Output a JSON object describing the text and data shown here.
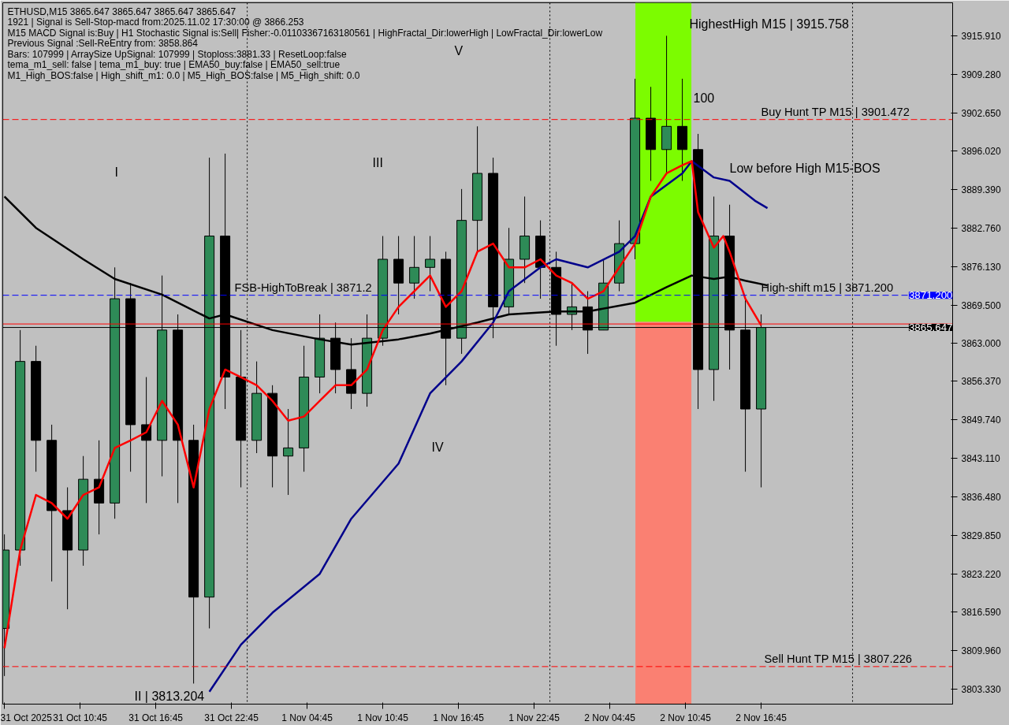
{
  "chart_data": {
    "type": "candlestick",
    "xlim": [
      "2025-10-31T04:37",
      "2025-11-03T07:56"
    ],
    "ylim": [
      3800.76,
      3921.59
    ],
    "xticks": [
      {
        "value": "2025-10-31T04:45",
        "label": "31 Oct 2025"
      },
      {
        "value": "2025-10-31T10:45",
        "label": "31 Oct 10:45"
      },
      {
        "value": "2025-10-31T16:45",
        "label": "31 Oct 16:45"
      },
      {
        "value": "2025-10-31T22:45",
        "label": "31 Oct 22:45"
      },
      {
        "value": "2025-11-01T04:45",
        "label": "1 Nov 04:45"
      },
      {
        "value": "2025-11-01T10:45",
        "label": "1 Nov 10:45"
      },
      {
        "value": "2025-11-01T16:45",
        "label": "1 Nov 16:45"
      },
      {
        "value": "2025-11-01T22:45",
        "label": "1 Nov 22:45"
      },
      {
        "value": "2025-11-02T04:45",
        "label": "2 Nov 04:45"
      },
      {
        "value": "2025-11-02T10:45",
        "label": "2 Nov 10:45"
      },
      {
        "value": "2025-11-02T16:45",
        "label": "2 Nov 16:45"
      }
    ],
    "yticks": [
      {
        "value": 3915.91,
        "label": "3915.910"
      },
      {
        "value": 3909.28,
        "label": "3909.280"
      },
      {
        "value": 3902.65,
        "label": "3902.650"
      },
      {
        "value": 3896.02,
        "label": "3896.020"
      },
      {
        "value": 3889.39,
        "label": "3889.390"
      },
      {
        "value": 3882.76,
        "label": "3882.760"
      },
      {
        "value": 3876.13,
        "label": "3876.130"
      },
      {
        "value": 3869.5,
        "label": "3869.500"
      },
      {
        "value": 3863.0,
        "label": "3863.000"
      },
      {
        "value": 3856.37,
        "label": "3856.370"
      },
      {
        "value": 3849.74,
        "label": "3849.740"
      },
      {
        "value": 3843.11,
        "label": "3843.110"
      },
      {
        "value": 3836.48,
        "label": "3836.480"
      },
      {
        "value": 3829.85,
        "label": "3829.850"
      },
      {
        "value": 3823.22,
        "label": "3823.220"
      },
      {
        "value": 3816.59,
        "label": "3816.590"
      },
      {
        "value": 3809.96,
        "label": "3809.960"
      },
      {
        "value": 3803.33,
        "label": "3803.330"
      }
    ],
    "series": [
      {
        "type": "bar",
        "color": "#7cfc00",
        "x": [
          "2025-11-02T09:00"
        ],
        "base": [
          3866.6
        ],
        "values": [
          55.0
        ]
      },
      {
        "type": "bar",
        "color": "#fa8072",
        "x": [
          "2025-11-02T09:00"
        ],
        "base": [
          3800.8
        ],
        "values": [
          65.8
        ]
      },
      {
        "type": "line",
        "color": "#000000",
        "x": [
          "2025-10-31T04:45",
          "2025-10-31T07:15",
          "2025-10-31T11:00",
          "2025-10-31T13:30",
          "2025-10-31T17:15",
          "2025-10-31T21:00",
          "2025-10-31T22:15",
          "2025-11-01T02:00",
          "2025-11-01T05:45",
          "2025-11-01T08:15",
          "2025-11-01T12:00",
          "2025-11-01T14:30",
          "2025-11-01T18:15",
          "2025-11-01T20:45",
          "2025-11-02T00:30",
          "2025-11-02T03:00",
          "2025-11-02T06:45",
          "2025-11-02T09:15",
          "2025-11-02T11:15",
          "2025-11-02T13:00",
          "2025-11-02T14:15",
          "2025-11-02T15:30",
          "2025-11-02T17:15"
        ],
        "values": [
          3888.2,
          3882.8,
          3877.4,
          3874.0,
          3871.3,
          3867.2,
          3867.9,
          3865.2,
          3863.6,
          3862.7,
          3863.6,
          3864.6,
          3866.5,
          3867.9,
          3868.4,
          3868.4,
          3869.9,
          3872.6,
          3874.6,
          3874.0,
          3874.4,
          3873.7,
          3872.9
        ]
      },
      {
        "type": "line",
        "color": "#00008b",
        "x": [
          "2025-10-31T21:00",
          "2025-10-31T23:30",
          "2025-11-01T02:00",
          "2025-11-01T05:45",
          "2025-11-01T08:15",
          "2025-11-01T12:00",
          "2025-11-01T14:30",
          "2025-11-01T17:00",
          "2025-11-01T19:30",
          "2025-11-01T20:45",
          "2025-11-01T23:15",
          "2025-11-02T00:30",
          "2025-11-02T03:00",
          "2025-11-02T05:30",
          "2025-11-02T06:45",
          "2025-11-02T08:00",
          "2025-11-02T10:30",
          "2025-11-02T11:15",
          "2025-11-02T13:00",
          "2025-11-02T14:15",
          "2025-11-02T16:15",
          "2025-11-02T17:15"
        ],
        "values": [
          3802.9,
          3811.0,
          3816.5,
          3823.2,
          3832.7,
          3842.2,
          3854.3,
          3859.8,
          3866.5,
          3871.9,
          3876.0,
          3877.4,
          3876.0,
          3878.7,
          3881.4,
          3888.2,
          3892.2,
          3894.3,
          3891.5,
          3890.9,
          3887.5,
          3886.2
        ]
      },
      {
        "type": "line",
        "color": "#ff0000",
        "x": [
          "2025-10-31T04:45",
          "2025-10-31T06:00",
          "2025-10-31T07:15",
          "2025-10-31T08:30",
          "2025-10-31T09:45",
          "2025-10-31T11:00",
          "2025-10-31T12:15",
          "2025-10-31T13:30",
          "2025-10-31T14:45",
          "2025-10-31T16:00",
          "2025-10-31T17:15",
          "2025-10-31T18:30",
          "2025-10-31T19:45",
          "2025-10-31T21:00",
          "2025-10-31T22:15",
          "2025-10-31T23:30",
          "2025-11-01T00:45",
          "2025-11-01T02:00",
          "2025-11-01T03:15",
          "2025-11-01T04:30",
          "2025-11-01T05:45",
          "2025-11-01T07:00",
          "2025-11-01T08:15",
          "2025-11-01T09:30",
          "2025-11-01T10:45",
          "2025-11-01T12:00",
          "2025-11-01T13:15",
          "2025-11-01T14:30",
          "2025-11-01T15:45",
          "2025-11-01T17:00",
          "2025-11-01T18:15",
          "2025-11-01T19:30",
          "2025-11-01T20:45",
          "2025-11-01T22:00",
          "2025-11-01T23:15",
          "2025-11-02T00:30",
          "2025-11-02T01:45",
          "2025-11-02T03:00",
          "2025-11-02T04:15",
          "2025-11-02T05:30",
          "2025-11-02T06:45",
          "2025-11-02T08:00",
          "2025-11-02T09:15",
          "2025-11-02T10:30",
          "2025-11-02T11:15",
          "2025-11-02T11:45",
          "2025-11-02T13:00",
          "2025-11-02T13:45",
          "2025-11-02T14:15",
          "2025-11-02T15:30",
          "2025-11-02T16:45"
        ],
        "values": [
          3810.4,
          3827.3,
          3836.8,
          3835.4,
          3832.7,
          3836.8,
          3838.1,
          3844.9,
          3846.2,
          3847.6,
          3853.0,
          3848.9,
          3838.1,
          3851.6,
          3858.4,
          3857.1,
          3855.7,
          3853.0,
          3849.6,
          3850.3,
          3853.0,
          3855.7,
          3855.7,
          3858.4,
          3865.2,
          3869.2,
          3871.9,
          3874.6,
          3869.2,
          3871.9,
          3878.7,
          3880.1,
          3876.0,
          3876.0,
          3877.4,
          3874.6,
          3873.3,
          3870.6,
          3871.9,
          3876.0,
          3880.1,
          3888.2,
          3892.2,
          3893.6,
          3894.3,
          3885.5,
          3879.4,
          3881.4,
          3878.7,
          3870.6,
          3866.0
        ]
      },
      {
        "color": "#000000",
        "x": [
          "2025-10-31T04:45",
          "2025-10-31T06:00",
          "2025-10-31T07:15",
          "2025-10-31T08:30",
          "2025-10-31T09:45",
          "2025-10-31T11:00",
          "2025-10-31T12:15",
          "2025-10-31T13:30",
          "2025-10-31T14:45",
          "2025-10-31T16:00",
          "2025-10-31T17:15",
          "2025-10-31T18:30",
          "2025-10-31T19:45",
          "2025-10-31T21:00",
          "2025-10-31T22:15",
          "2025-10-31T23:30",
          "2025-11-01T00:45",
          "2025-11-01T02:00",
          "2025-11-01T03:15",
          "2025-11-01T04:30",
          "2025-11-01T05:45",
          "2025-11-01T07:00",
          "2025-11-01T08:15",
          "2025-11-01T09:30",
          "2025-11-01T10:45",
          "2025-11-01T12:00",
          "2025-11-01T13:15",
          "2025-11-01T14:30",
          "2025-11-01T15:45",
          "2025-11-01T17:00",
          "2025-11-01T18:15",
          "2025-11-01T19:30",
          "2025-11-01T20:45",
          "2025-11-01T22:00",
          "2025-11-01T23:15",
          "2025-11-02T00:30",
          "2025-11-02T01:45",
          "2025-11-02T03:00",
          "2025-11-02T04:15",
          "2025-11-02T05:30",
          "2025-11-02T06:45",
          "2025-11-02T08:00",
          "2025-11-02T09:15",
          "2025-11-02T10:30",
          "2025-11-02T11:45",
          "2025-11-02T13:00",
          "2025-11-02T14:15",
          "2025-11-02T15:30",
          "2025-11-02T16:45"
        ],
        "ohlc": [
          [
            3813.8,
            3830.0,
            3805.6,
            3827.3
          ],
          [
            3827.3,
            3865.2,
            3824.6,
            3859.8
          ],
          [
            3859.8,
            3862.5,
            3840.8,
            3846.2
          ],
          [
            3846.2,
            3848.9,
            3821.9,
            3834.1
          ],
          [
            3834.1,
            3838.1,
            3817.1,
            3827.3
          ],
          [
            3827.3,
            3843.5,
            3824.6,
            3839.5
          ],
          [
            3839.5,
            3846.2,
            3830.0,
            3835.4
          ],
          [
            3835.4,
            3876.0,
            3832.7,
            3870.6
          ],
          [
            3870.6,
            3873.3,
            3840.8,
            3848.9
          ],
          [
            3848.9,
            3857.1,
            3835.4,
            3846.2
          ],
          [
            3846.2,
            3874.6,
            3840.0,
            3865.2
          ],
          [
            3865.2,
            3867.9,
            3835.4,
            3846.2
          ],
          [
            3846.2,
            3848.9,
            3804.3,
            3819.2
          ],
          [
            3819.2,
            3894.9,
            3813.8,
            3881.4
          ],
          [
            3881.4,
            3895.6,
            3851.6,
            3857.1
          ],
          [
            3857.1,
            3865.2,
            3838.1,
            3846.2
          ],
          [
            3846.2,
            3859.8,
            3844.0,
            3854.3
          ],
          [
            3854.3,
            3855.7,
            3838.1,
            3843.5
          ],
          [
            3843.5,
            3851.6,
            3836.8,
            3844.9
          ],
          [
            3844.9,
            3862.5,
            3840.8,
            3857.1
          ],
          [
            3857.1,
            3867.9,
            3854.3,
            3863.8
          ],
          [
            3863.8,
            3866.5,
            3854.3,
            3858.4
          ],
          [
            3858.4,
            3863.8,
            3851.6,
            3854.3
          ],
          [
            3854.3,
            3867.9,
            3852.0,
            3863.8
          ],
          [
            3863.8,
            3881.4,
            3862.5,
            3877.4
          ],
          [
            3877.4,
            3881.4,
            3867.9,
            3873.3
          ],
          [
            3873.3,
            3881.4,
            3870.6,
            3876.0
          ],
          [
            3876.0,
            3881.4,
            3871.9,
            3877.4
          ],
          [
            3877.4,
            3878.7,
            3855.7,
            3863.8
          ],
          [
            3863.8,
            3889.5,
            3861.1,
            3884.1
          ],
          [
            3884.1,
            3900.3,
            3878.7,
            3892.2
          ],
          [
            3892.2,
            3894.9,
            3863.8,
            3869.2
          ],
          [
            3869.2,
            3882.8,
            3867.9,
            3877.4
          ],
          [
            3877.4,
            3888.2,
            3873.3,
            3881.4
          ],
          [
            3881.4,
            3884.1,
            3870.6,
            3876.0
          ],
          [
            3876.0,
            3878.7,
            3862.5,
            3867.9
          ],
          [
            3867.9,
            3873.3,
            3865.2,
            3869.2
          ],
          [
            3869.2,
            3871.9,
            3861.1,
            3865.2
          ],
          [
            3865.2,
            3877.4,
            3865.2,
            3873.3
          ],
          [
            3873.3,
            3884.1,
            3871.9,
            3880.1
          ],
          [
            3880.1,
            3908.5,
            3877.4,
            3901.7
          ],
          [
            3901.7,
            3907.1,
            3890.9,
            3896.3
          ],
          [
            3896.3,
            3915.9,
            3892.2,
            3900.3
          ],
          [
            3900.3,
            3908.5,
            3890.9,
            3896.3
          ],
          [
            3896.3,
            3899.0,
            3851.6,
            3858.4
          ],
          [
            3858.4,
            3888.2,
            3853.0,
            3881.4
          ],
          [
            3881.4,
            3886.8,
            3858.4,
            3865.2
          ],
          [
            3865.2,
            3870.6,
            3840.8,
            3851.6
          ],
          [
            3851.6,
            3867.9,
            3838.1,
            3865.647
          ]
        ]
      }
    ],
    "ref_lines": [
      {
        "axis": "y",
        "value": 3901.472,
        "label": null,
        "color": "#ff0000",
        "line_style": "dashed"
      },
      {
        "axis": "y",
        "value": 3807.226,
        "label": null,
        "color": "#ff0000",
        "line_style": "dashed"
      },
      {
        "axis": "y",
        "value": 3871.2,
        "label": "3871.200",
        "color": "#0000ff",
        "line_style": "dashed"
      },
      {
        "axis": "y",
        "value": 3866.253,
        "label": null,
        "color": "#ff0000",
        "line_style": "solid"
      },
      {
        "axis": "y",
        "value": 3865.647,
        "label": "3865.647",
        "color": "#000000",
        "line_style": "solid"
      },
      {
        "axis": "x",
        "value": "2025-11-01T00:00",
        "label": null,
        "color": "#000000",
        "line_style": "dotted"
      },
      {
        "axis": "x",
        "value": "2025-11-02T00:00",
        "label": null,
        "color": "#000000",
        "line_style": "dotted"
      },
      {
        "axis": "x",
        "value": "2025-11-03T00:00",
        "label": null,
        "color": "#000000",
        "line_style": "dotted"
      }
    ],
    "annotations": [
      "ETHUSD,M15  3865.647 3865.647 3865.647 3865.647",
      "1921 | Signal is Sell-Stop-macd from:2025.11.02 17:30:00 @ 3866.253",
      "M15 MACD Signal is:Buy | H1 Stochastic Signal is:Sell| Fisher:-0.01103367163180561 | HighFractal_Dir:lowerHigh | LowFractal_Dir:lowerLow",
      "Previous Signal :Sell-ReEntry from: 3858.864",
      "Bars: 107999 | ArraySize UpSignal: 107999 | Stoploss:3881.33 | ResetLoop:false",
      "tema_m1_sell: false | tema_m1_buy: true | EMA50_buy:false | EMA50_sell:true",
      "M1_High_BOS:false | High_shift_m1: 0.0 | M5_High_BOS:false | M5_High_shift: 0.0",
      "HighestHigh   M15 | 3915.758",
      "Low before High   M15-BOS",
      "I",
      "III",
      "IV",
      "V",
      "II | 3813.204",
      "100",
      {
        "text": "Buy Hunt TP M15 | 3901.472",
        "x": "2025-11-02T16:45",
        "y": 3901.472
      },
      {
        "text": "High-shift m15 | 3871.200",
        "x": "2025-11-02T16:45",
        "y": 3871.2
      },
      {
        "text": "FSB-HighToBreak | 3871.2",
        "x": "2025-10-31T23:00",
        "y": 3871.2
      },
      {
        "text": "Sell Hunt TP M15 | 3807.226",
        "x": "2025-11-02T17:00",
        "y": 3807.226
      }
    ]
  }
}
